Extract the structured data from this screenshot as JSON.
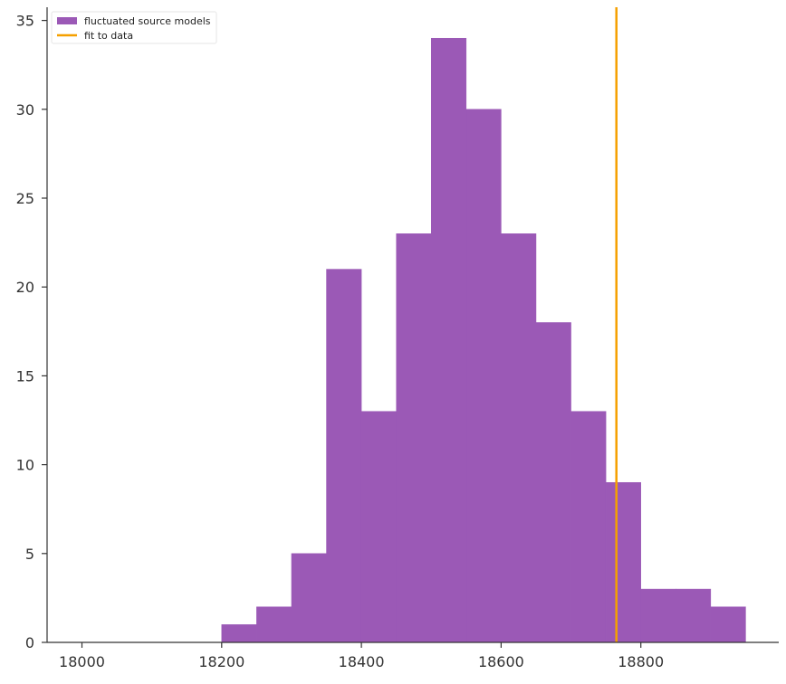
{
  "chart_data": {
    "type": "bar",
    "subtype": "histogram",
    "title": "",
    "xlabel": "",
    "ylabel": "",
    "xlim": [
      17950,
      19000
    ],
    "ylim": [
      0,
      36
    ],
    "x_ticks": [
      18000,
      18200,
      18400,
      18600,
      18800
    ],
    "y_ticks": [
      0,
      5,
      10,
      15,
      20,
      25,
      30,
      35
    ],
    "grid": false,
    "legend": {
      "placement": "top-left",
      "entries": [
        {
          "label": "fluctuated source models",
          "kind": "patch",
          "color": "#9b59b6"
        },
        {
          "label": "fit to data",
          "kind": "line",
          "color": "#f5a000"
        }
      ]
    },
    "bins": [
      {
        "x0": 18200,
        "x1": 18250,
        "count": 1
      },
      {
        "x0": 18250,
        "x1": 18300,
        "count": 2
      },
      {
        "x0": 18300,
        "x1": 18350,
        "count": 5
      },
      {
        "x0": 18350,
        "x1": 18400,
        "count": 21
      },
      {
        "x0": 18400,
        "x1": 18450,
        "count": 13
      },
      {
        "x0": 18450,
        "x1": 18500,
        "count": 23
      },
      {
        "x0": 18500,
        "x1": 18550,
        "count": 34
      },
      {
        "x0": 18550,
        "x1": 18600,
        "count": 30
      },
      {
        "x0": 18600,
        "x1": 18650,
        "count": 23
      },
      {
        "x0": 18650,
        "x1": 18700,
        "count": 18
      },
      {
        "x0": 18700,
        "x1": 18750,
        "count": 13
      },
      {
        "x0": 18750,
        "x1": 18800,
        "count": 9
      },
      {
        "x0": 18800,
        "x1": 18850,
        "count": 3
      },
      {
        "x0": 18850,
        "x1": 18900,
        "count": 3
      },
      {
        "x0": 18900,
        "x1": 18950,
        "count": 2
      }
    ],
    "bar_color": "#9b59b6",
    "vline": {
      "x": 18765,
      "label": "fit to data",
      "color": "#f5a000"
    }
  }
}
